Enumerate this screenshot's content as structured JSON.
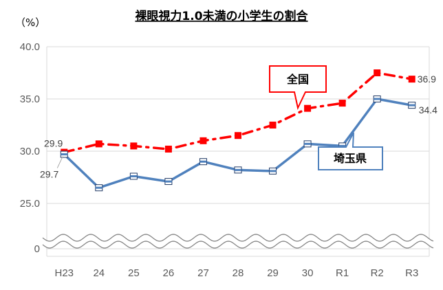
{
  "chart_data": {
    "type": "line",
    "title": "裸眼視力1.0未満の小学生の割合",
    "unit_label": "（%）",
    "categories": [
      "H23",
      "24",
      "25",
      "26",
      "27",
      "28",
      "29",
      "30",
      "R1",
      "R2",
      "R3"
    ],
    "yticks": [
      "40.0",
      "35.0",
      "30.0",
      "25.0",
      "0"
    ],
    "ylim": [
      0,
      40
    ],
    "axis_break": true,
    "grid": true,
    "series": [
      {
        "name": "全国",
        "color": "#ff0000",
        "style": "dash-dot",
        "values": [
          29.9,
          30.7,
          30.5,
          30.2,
          31.0,
          31.5,
          32.5,
          34.1,
          34.6,
          37.5,
          36.9
        ]
      },
      {
        "name": "埼玉県",
        "color": "#4f81bd",
        "style": "solid",
        "values": [
          29.7,
          26.5,
          27.6,
          27.1,
          29.0,
          28.2,
          28.1,
          30.7,
          30.5,
          35.0,
          34.4
        ]
      }
    ],
    "data_labels": [
      {
        "series": 0,
        "index": 0,
        "text": "29.9"
      },
      {
        "series": 1,
        "index": 0,
        "text": "29.7"
      },
      {
        "series": 0,
        "index": 10,
        "text": "36.9"
      },
      {
        "series": 1,
        "index": 10,
        "text": "34.4"
      }
    ]
  }
}
